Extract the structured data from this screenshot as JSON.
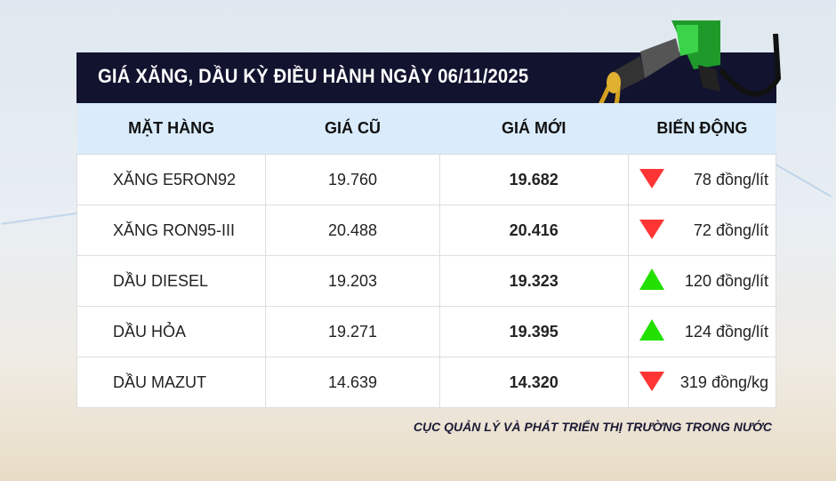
{
  "title": "GIÁ XĂNG, DẦU KỲ ĐIỀU HÀNH NGÀY 06/11/2025",
  "columns": [
    "MẶT HÀNG",
    "GIÁ CŨ",
    "GIÁ MỚI",
    "BIẾN ĐỘNG"
  ],
  "rows": [
    {
      "name": "XĂNG E5RON92",
      "old": "19.760",
      "new": "19.682",
      "change": "78 đồng/lít",
      "direction": "down"
    },
    {
      "name": "XĂNG RON95-III",
      "old": "20.488",
      "new": "20.416",
      "change": "72 đồng/lít",
      "direction": "down"
    },
    {
      "name": "DẦU DIESEL",
      "old": "19.203",
      "new": "19.323",
      "change": "120 đồng/lít",
      "direction": "up"
    },
    {
      "name": "DẦU HỎA",
      "old": "19.271",
      "new": "19.395",
      "change": "124 đồng/lít",
      "direction": "up"
    },
    {
      "name": "DẦU MAZUT",
      "old": "14.639",
      "new": "14.320",
      "change": "319 đồng/kg",
      "direction": "down"
    }
  ],
  "source": "CỤC QUẢN LÝ VÀ PHÁT TRIỂN THỊ TRƯỜNG TRONG NƯỚC",
  "colors": {
    "header_bg": "#11132f",
    "column_header_bg": "#daecfb",
    "down": "#ff3535",
    "up": "#22e000"
  }
}
